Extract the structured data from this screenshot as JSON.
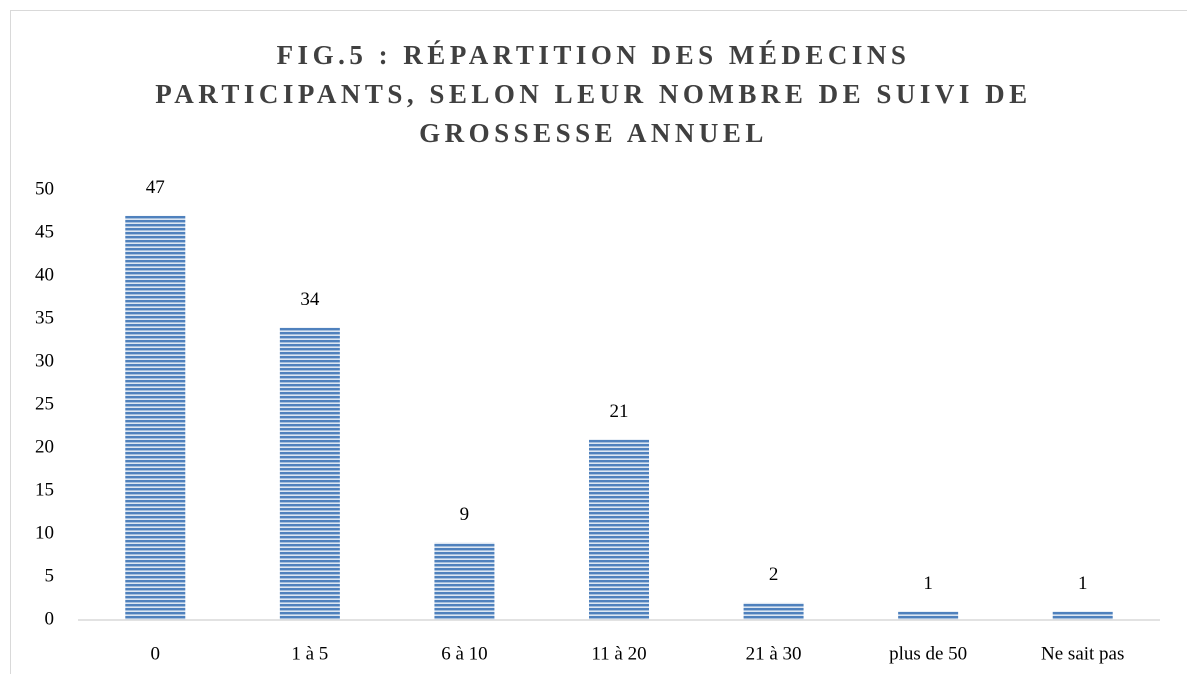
{
  "chart_data": {
    "type": "bar",
    "title": "FIG.5 : RÉPARTITION DES MÉDECINS\nPARTICIPANTS, SELON LEUR NOMBRE DE SUIVI DE\nGROSSESSE ANNUEL",
    "categories": [
      "0",
      "1 à 5",
      "6 à 10",
      "11 à 20",
      "21 à 30",
      "plus de 50",
      "Ne sait pas"
    ],
    "values": [
      47,
      34,
      9,
      21,
      2,
      1,
      1
    ],
    "color": "#4f81bd",
    "ylim": [
      0,
      50
    ],
    "yticks": [
      0,
      5,
      10,
      15,
      20,
      25,
      30,
      35,
      40,
      45,
      50
    ],
    "grid": false
  }
}
